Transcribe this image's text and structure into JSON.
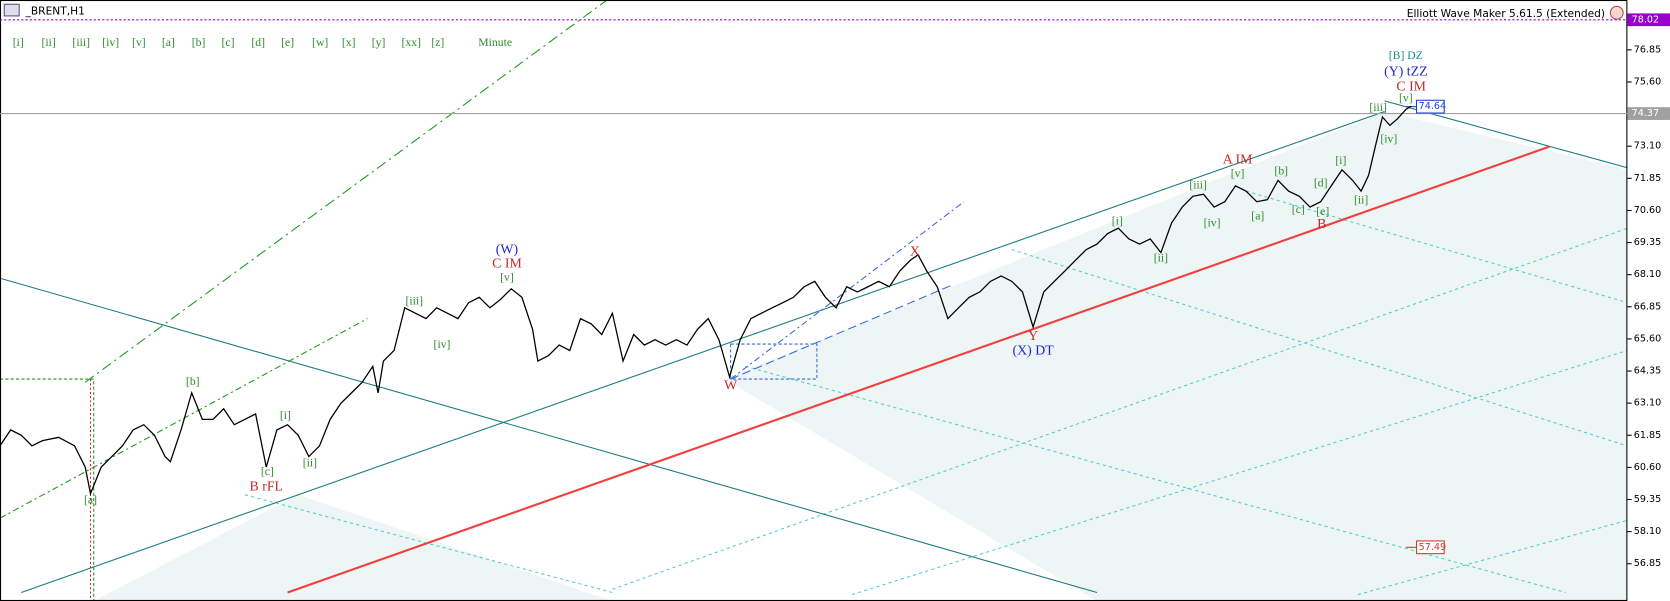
{
  "chart_data": {
    "type": "line",
    "title": "_BRENT,H1",
    "subtitle": "Elliott Wave Maker 5.61.5 (Extended)",
    "toolbar": [
      "[i]",
      "[ii]",
      "[iii]",
      "[iv]",
      "[v]",
      "[a]",
      "[b]",
      "[c]",
      "[d]",
      "[e]",
      "[w]",
      "[x]",
      "[y]",
      "[xx]",
      "[z]",
      "Minute"
    ],
    "xlim": [
      0,
      1528
    ],
    "ylim": [
      55.4,
      78.79
    ],
    "yticks": [
      56.85,
      {
        "value": 58.1,
        "label": "58.10"
      },
      59.35,
      {
        "value": 60.6,
        "label": "60.60"
      },
      61.85,
      {
        "value": 63.1,
        "label": "63.10"
      },
      64.35,
      {
        "value": 65.6,
        "label": "65.60"
      },
      66.85,
      {
        "value": 68.1,
        "label": "68.10"
      },
      69.35,
      {
        "value": 70.6,
        "label": "70.60"
      },
      71.85,
      {
        "value": 73.1,
        "label": "73.10"
      },
      {
        "value": 75.6,
        "label": "75.60"
      },
      76.85
    ],
    "axis_labels": [
      {
        "value": 78.02,
        "color": "#9900cc"
      },
      {
        "value": 74.37,
        "color": "#a0a0a0"
      }
    ],
    "level_labels": [
      {
        "value": 74.64,
        "color": "#1c3fd6"
      },
      {
        "value": 57.49,
        "color": "#e03030"
      }
    ],
    "x": [
      0,
      10,
      20,
      30,
      40,
      55,
      70,
      80,
      85,
      95,
      105,
      115,
      125,
      135,
      145,
      155,
      160,
      170,
      180,
      190,
      200,
      210,
      220,
      230,
      240,
      250,
      260,
      270,
      280,
      290,
      300,
      310,
      320,
      330,
      340,
      350,
      355,
      360,
      370,
      380,
      390,
      400,
      410,
      420,
      430,
      440,
      450,
      460,
      470,
      480,
      490,
      500,
      505,
      515,
      525,
      535,
      545,
      555,
      565,
      575,
      585,
      595,
      605,
      615,
      625,
      635,
      645,
      655,
      665,
      675,
      685,
      695,
      705,
      715,
      725,
      735,
      745,
      755,
      765,
      775,
      785,
      795,
      805,
      815,
      825,
      835,
      845,
      855,
      862,
      870,
      880,
      890,
      900,
      910,
      920,
      930,
      940,
      950,
      960,
      970,
      980,
      990,
      1000,
      1010,
      1020,
      1030,
      1040,
      1050,
      1060,
      1070,
      1080,
      1090,
      1100,
      1110,
      1120,
      1130,
      1140,
      1150,
      1160,
      1170,
      1180,
      1190,
      1200,
      1210,
      1220,
      1230,
      1240,
      1250,
      1260,
      1270,
      1278,
      1285,
      1292,
      1298,
      1305,
      1312,
      1320,
      1325
    ],
    "series": [
      {
        "name": "BRENT",
        "color": "#000000",
        "values": [
          61.44,
          62.06,
          61.85,
          61.44,
          61.64,
          61.77,
          61.44,
          60.61,
          59.58,
          60.61,
          61.02,
          61.44,
          62.06,
          62.26,
          61.85,
          61.02,
          60.82,
          62.06,
          63.5,
          62.47,
          62.47,
          62.88,
          62.26,
          62.47,
          62.68,
          60.61,
          62.06,
          62.26,
          61.85,
          61.02,
          61.44,
          62.47,
          63.09,
          63.5,
          63.91,
          64.53,
          63.5,
          64.74,
          65.15,
          66.81,
          66.6,
          66.39,
          66.81,
          66.6,
          66.39,
          67.01,
          67.22,
          66.81,
          67.14,
          67.55,
          67.22,
          65.98,
          64.74,
          64.95,
          65.36,
          65.15,
          66.39,
          66.19,
          65.77,
          66.6,
          64.74,
          65.77,
          65.36,
          65.57,
          65.36,
          65.57,
          65.36,
          65.98,
          66.39,
          65.57,
          64.12,
          65.57,
          66.39,
          66.6,
          66.81,
          67.01,
          67.22,
          67.63,
          67.84,
          67.22,
          66.81,
          67.63,
          67.43,
          67.63,
          67.84,
          67.63,
          68.25,
          68.67,
          68.87,
          68.25,
          67.63,
          66.39,
          66.81,
          67.22,
          67.43,
          67.84,
          68.05,
          67.84,
          67.43,
          66.06,
          67.43,
          67.84,
          68.25,
          68.67,
          69.08,
          69.29,
          69.7,
          69.91,
          69.49,
          69.29,
          69.49,
          68.96,
          70.11,
          70.73,
          71.15,
          71.23,
          70.73,
          70.94,
          71.56,
          71.35,
          70.94,
          71.02,
          71.77,
          71.35,
          71.15,
          70.73,
          70.94,
          71.56,
          72.18,
          71.77,
          71.35,
          71.97,
          73.21,
          74.24,
          73.91,
          74.16,
          74.53,
          74.66
        ]
      }
    ],
    "annotations": [
      {
        "text": "[a]",
        "x": 85,
        "y": 59.29,
        "color": "#2e8b2e"
      },
      {
        "text": "[b]",
        "x": 181,
        "y": 63.91,
        "color": "#2e8b2e"
      },
      {
        "text": "[c]",
        "x": 251,
        "y": 60.4,
        "color": "#2e8b2e"
      },
      {
        "text": "B rFL",
        "x": 250,
        "y": 59.83,
        "color": "#c62828"
      },
      {
        "text": "[i]",
        "x": 268,
        "y": 62.59,
        "color": "#2e8b2e"
      },
      {
        "text": "[ii]",
        "x": 291,
        "y": 60.73,
        "color": "#2e8b2e"
      },
      {
        "text": "[iii]",
        "x": 389,
        "y": 67.05,
        "color": "#2e8b2e"
      },
      {
        "text": "[iv]",
        "x": 415,
        "y": 65.36,
        "color": "#2e8b2e"
      },
      {
        "text": "[v]",
        "x": 476,
        "y": 67.96,
        "color": "#2e8b2e"
      },
      {
        "text": "C IM",
        "x": 476,
        "y": 68.5,
        "color": "#c62828"
      },
      {
        "text": "(W)",
        "x": 476,
        "y": 69.04,
        "color": "#2222cc"
      },
      {
        "text": "W",
        "x": 686,
        "y": 63.75,
        "color": "#c62828"
      },
      {
        "text": "X",
        "x": 859,
        "y": 68.96,
        "color": "#c62828"
      },
      {
        "text": "Y",
        "x": 970,
        "y": 65.69,
        "color": "#c62828"
      },
      {
        "text": "(X) DT",
        "x": 970,
        "y": 65.11,
        "color": "#2222cc"
      },
      {
        "text": "[i]",
        "x": 1049,
        "y": 70.15,
        "color": "#2e8b2e"
      },
      {
        "text": "[ii]",
        "x": 1090,
        "y": 68.71,
        "color": "#2e8b2e"
      },
      {
        "text": "[iii]",
        "x": 1125,
        "y": 71.56,
        "color": "#2e8b2e"
      },
      {
        "text": "[iv]",
        "x": 1138,
        "y": 70.07,
        "color": "#2e8b2e"
      },
      {
        "text": "[v]",
        "x": 1162,
        "y": 72.01,
        "color": "#2e8b2e"
      },
      {
        "text": "A IM",
        "x": 1162,
        "y": 72.55,
        "color": "#c62828"
      },
      {
        "text": "[a]",
        "x": 1181,
        "y": 70.36,
        "color": "#2e8b2e"
      },
      {
        "text": "[b]",
        "x": 1203,
        "y": 72.1,
        "color": "#2e8b2e"
      },
      {
        "text": "[c]",
        "x": 1219,
        "y": 70.61,
        "color": "#2e8b2e"
      },
      {
        "text": "[d]",
        "x": 1240,
        "y": 71.64,
        "color": "#2e8b2e"
      },
      {
        "text": "[e]",
        "x": 1242,
        "y": 70.53,
        "color": "#2e8b2e"
      },
      {
        "text": "B",
        "x": 1241,
        "y": 70.03,
        "color": "#c62828"
      },
      {
        "text": "[i]",
        "x": 1259,
        "y": 72.51,
        "color": "#2e8b2e"
      },
      {
        "text": "[ii]",
        "x": 1278,
        "y": 70.98,
        "color": "#2e8b2e"
      },
      {
        "text": "[iii]",
        "x": 1294,
        "y": 74.58,
        "color": "#2e8b2e"
      },
      {
        "text": "[iv]",
        "x": 1304,
        "y": 73.34,
        "color": "#2e8b2e"
      },
      {
        "text": "[v]",
        "x": 1320,
        "y": 74.95,
        "color": "#2e8b2e"
      },
      {
        "text": "C IM",
        "x": 1325,
        "y": 75.4,
        "color": "#c62828"
      },
      {
        "text": "(Y) tZZ",
        "x": 1320,
        "y": 75.98,
        "color": "#2222cc"
      },
      {
        "text": "[B] DZ",
        "x": 1320,
        "y": 76.6,
        "color": "#1a8a8a"
      }
    ]
  }
}
